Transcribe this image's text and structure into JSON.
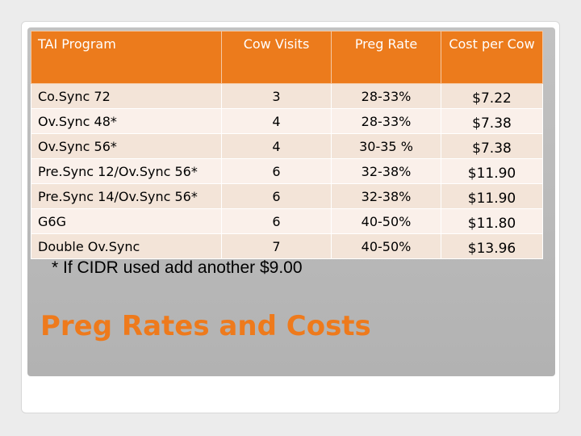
{
  "table": {
    "headers": {
      "program": "TAI Program",
      "visits": "Cow Visits",
      "rate": "Preg Rate",
      "cost": "Cost per Cow"
    },
    "rows": [
      {
        "program": "Co.Sync 72",
        "visits": "3",
        "rate": "28-33%",
        "cost": "$7.22"
      },
      {
        "program": "Ov.Sync 48*",
        "visits": "4",
        "rate": "28-33%",
        "cost": "$7.38"
      },
      {
        "program": "Ov.Sync 56*",
        "visits": "4",
        "rate": "30-35 %",
        "cost": "$7.38"
      },
      {
        "program": "Pre.Sync 12/Ov.Sync 56*",
        "visits": "6",
        "rate": "32-38%",
        "cost": "$11.90"
      },
      {
        "program": "Pre.Sync 14/Ov.Sync 56*",
        "visits": "6",
        "rate": "32-38%",
        "cost": "$11.90"
      },
      {
        "program": "G6G",
        "visits": "6",
        "rate": "40-50%",
        "cost": "$11.80"
      },
      {
        "program": "Double Ov.Sync",
        "visits": "7",
        "rate": "40-50%",
        "cost": "$13.96"
      }
    ]
  },
  "footnote": "* If CIDR used add another $9.00",
  "title": "Preg Rates and Costs",
  "colors": {
    "header_bg": "#ec7b1c",
    "title": "#ee7a1c",
    "row_odd": "#f3e4d8",
    "row_even": "#faf0ea"
  }
}
